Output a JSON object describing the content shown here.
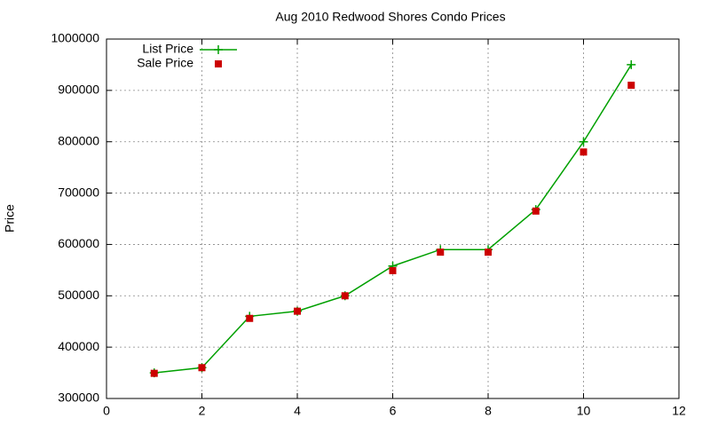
{
  "chart_data": {
    "type": "line",
    "title": "Aug 2010 Redwood Shores Condo Prices",
    "y_label": "Price",
    "x": [
      1,
      2,
      3,
      4,
      5,
      6,
      7,
      8,
      9,
      10,
      11
    ],
    "series": [
      {
        "name": "List Price",
        "color": "#00a000",
        "marker": "plus",
        "line": true,
        "values": [
          350000,
          360000,
          460000,
          470000,
          500000,
          558000,
          590000,
          590000,
          668000,
          800000,
          950000
        ]
      },
      {
        "name": "Sale Price",
        "color": "#cc0000",
        "marker": "square",
        "line": false,
        "values": [
          349000,
          360000,
          456000,
          470000,
          500000,
          549000,
          585000,
          585000,
          665000,
          780000,
          910000
        ]
      }
    ],
    "xlim": [
      0,
      12
    ],
    "xticks": [
      0,
      2,
      4,
      6,
      8,
      10,
      12
    ],
    "ylim": [
      300000,
      1000000
    ],
    "yticks": [
      300000,
      400000,
      500000,
      600000,
      700000,
      800000,
      900000,
      1000000
    ],
    "grid": true,
    "legend": "top-left"
  }
}
